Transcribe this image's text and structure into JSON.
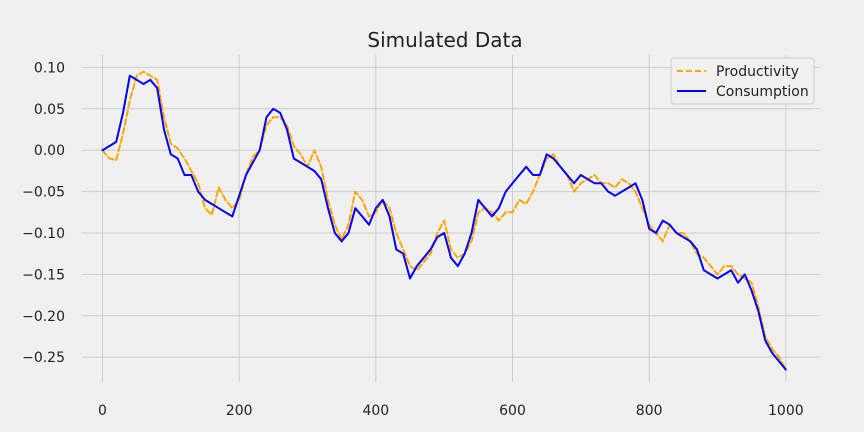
{
  "chart_data": {
    "type": "line",
    "title": "Simulated Data",
    "xlabel": "",
    "ylabel": "",
    "xlim": [
      -30,
      1050
    ],
    "ylim": [
      -0.28,
      0.115
    ],
    "x_ticks": [
      0,
      200,
      400,
      600,
      800,
      1000
    ],
    "y_ticks": [
      0.1,
      0.05,
      0.0,
      -0.05,
      -0.1,
      -0.15,
      -0.2,
      -0.25
    ],
    "x_tick_labels": [
      "0",
      "200",
      "400",
      "600",
      "800",
      "1000"
    ],
    "y_tick_labels": [
      "0.10",
      "0.05",
      "0.00",
      "−0.05",
      "−0.10",
      "−0.15",
      "−0.20",
      "−0.25"
    ],
    "grid": true,
    "legend_position": "top-right",
    "x": [
      0,
      10,
      20,
      30,
      40,
      50,
      60,
      70,
      80,
      90,
      100,
      110,
      120,
      130,
      140,
      150,
      160,
      170,
      180,
      190,
      200,
      210,
      220,
      230,
      240,
      250,
      260,
      270,
      280,
      290,
      300,
      310,
      320,
      330,
      340,
      350,
      360,
      370,
      380,
      390,
      400,
      410,
      420,
      430,
      440,
      450,
      460,
      470,
      480,
      490,
      500,
      510,
      520,
      530,
      540,
      550,
      560,
      570,
      580,
      590,
      600,
      610,
      620,
      630,
      640,
      650,
      660,
      670,
      680,
      690,
      700,
      710,
      720,
      730,
      740,
      750,
      760,
      770,
      780,
      790,
      800,
      810,
      820,
      830,
      840,
      850,
      860,
      870,
      880,
      890,
      900,
      910,
      920,
      930,
      940,
      950,
      960,
      970,
      980,
      990,
      1000
    ],
    "series": [
      {
        "name": "Productivity",
        "color": "#ffa500",
        "dash": true,
        "values": [
          0.0,
          -0.01,
          -0.012,
          0.02,
          0.06,
          0.09,
          0.095,
          0.09,
          0.085,
          0.04,
          0.008,
          0.002,
          -0.01,
          -0.025,
          -0.04,
          -0.07,
          -0.078,
          -0.045,
          -0.06,
          -0.07,
          -0.06,
          -0.03,
          -0.008,
          0.0,
          0.03,
          0.04,
          0.04,
          0.03,
          0.005,
          -0.005,
          -0.02,
          0.0,
          -0.02,
          -0.06,
          -0.09,
          -0.108,
          -0.09,
          -0.05,
          -0.06,
          -0.08,
          -0.075,
          -0.06,
          -0.07,
          -0.1,
          -0.12,
          -0.14,
          -0.145,
          -0.135,
          -0.125,
          -0.1,
          -0.085,
          -0.12,
          -0.13,
          -0.125,
          -0.11,
          -0.075,
          -0.07,
          -0.075,
          -0.085,
          -0.075,
          -0.075,
          -0.06,
          -0.065,
          -0.05,
          -0.03,
          -0.01,
          -0.005,
          -0.02,
          -0.03,
          -0.05,
          -0.04,
          -0.035,
          -0.03,
          -0.04,
          -0.04,
          -0.045,
          -0.035,
          -0.04,
          -0.05,
          -0.07,
          -0.09,
          -0.1,
          -0.11,
          -0.09,
          -0.1,
          -0.1,
          -0.11,
          -0.125,
          -0.13,
          -0.14,
          -0.15,
          -0.14,
          -0.14,
          -0.15,
          -0.155,
          -0.16,
          -0.19,
          -0.225,
          -0.24,
          -0.25,
          -0.265
        ]
      },
      {
        "name": "Consumption",
        "color": "#0000ff",
        "dash": false,
        "values": [
          0.0,
          0.005,
          0.01,
          0.045,
          0.09,
          0.085,
          0.08,
          0.085,
          0.075,
          0.025,
          -0.005,
          -0.01,
          -0.03,
          -0.03,
          -0.05,
          -0.06,
          -0.065,
          -0.07,
          -0.075,
          -0.08,
          -0.055,
          -0.03,
          -0.015,
          0.0,
          0.04,
          0.05,
          0.045,
          0.025,
          -0.01,
          -0.015,
          -0.02,
          -0.025,
          -0.035,
          -0.07,
          -0.1,
          -0.11,
          -0.1,
          -0.07,
          -0.08,
          -0.09,
          -0.07,
          -0.06,
          -0.08,
          -0.12,
          -0.125,
          -0.155,
          -0.14,
          -0.13,
          -0.12,
          -0.105,
          -0.1,
          -0.13,
          -0.14,
          -0.125,
          -0.1,
          -0.06,
          -0.07,
          -0.08,
          -0.07,
          -0.05,
          -0.04,
          -0.03,
          -0.02,
          -0.03,
          -0.03,
          -0.005,
          -0.01,
          -0.02,
          -0.03,
          -0.04,
          -0.03,
          -0.035,
          -0.04,
          -0.04,
          -0.05,
          -0.055,
          -0.05,
          -0.045,
          -0.04,
          -0.06,
          -0.095,
          -0.1,
          -0.085,
          -0.09,
          -0.1,
          -0.105,
          -0.11,
          -0.12,
          -0.145,
          -0.15,
          -0.155,
          -0.15,
          -0.145,
          -0.16,
          -0.15,
          -0.17,
          -0.195,
          -0.23,
          -0.245,
          -0.255,
          -0.265
        ]
      }
    ]
  },
  "colors": {
    "background": "#f0f0f0",
    "grid": "#cbcbcb"
  }
}
